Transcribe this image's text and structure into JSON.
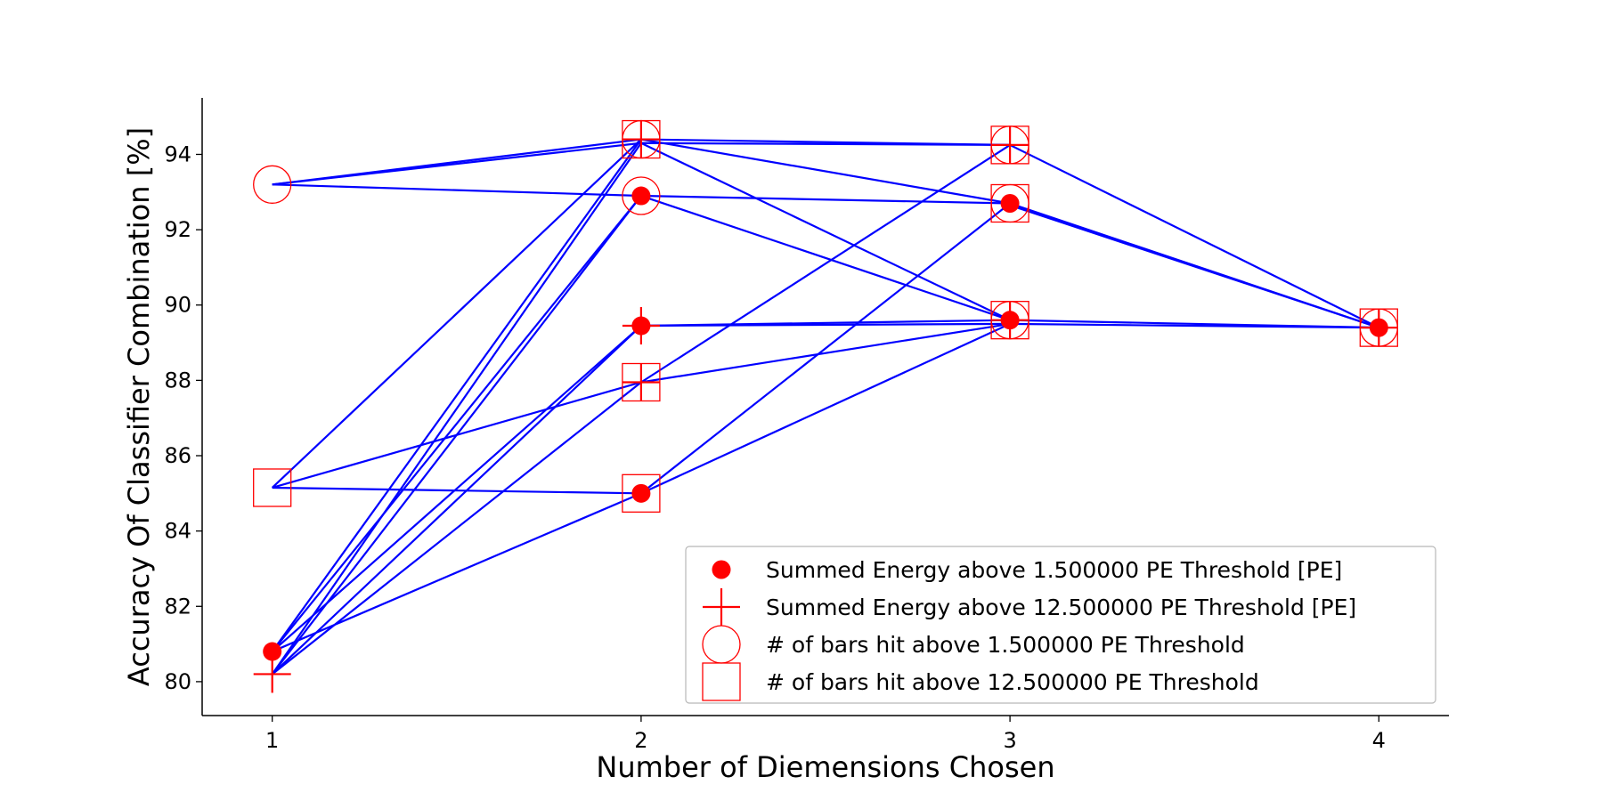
{
  "chart_data": {
    "type": "scatter",
    "xlabel": "Number of Diemensions Chosen",
    "ylabel": "Accuracy Of Classifier Combination [%]",
    "xlim": [
      0.81,
      4.19
    ],
    "ylim": [
      79.1,
      95.5
    ],
    "xticks": [
      1,
      2,
      3,
      4
    ],
    "yticks": [
      80,
      82,
      84,
      86,
      88,
      90,
      92,
      94
    ],
    "grid": false,
    "legend_position": "lower-right",
    "line_color": "#0000ff",
    "marker_color": "#ff0000",
    "legend": [
      {
        "marker": "dot",
        "label": "Summed Energy above 1.500000 PE Threshold [PE]"
      },
      {
        "marker": "plus",
        "label": "Summed Energy above 12.500000 PE Threshold [PE]"
      },
      {
        "marker": "circle",
        "label": "# of bars hit above 1.500000 PE Threshold"
      },
      {
        "marker": "square",
        "label": "# of bars hit above 12.500000 PE Threshold"
      }
    ],
    "points": [
      {
        "x": 1,
        "y": 80.8,
        "markers": [
          "dot"
        ]
      },
      {
        "x": 1,
        "y": 80.2,
        "markers": [
          "plus"
        ]
      },
      {
        "x": 1,
        "y": 93.2,
        "markers": [
          "circle"
        ]
      },
      {
        "x": 1,
        "y": 85.15,
        "markers": [
          "square"
        ]
      },
      {
        "x": 2,
        "y": 94.4,
        "markers": [
          "plus",
          "circle",
          "square"
        ]
      },
      {
        "x": 2,
        "y": 92.9,
        "markers": [
          "dot",
          "circle"
        ]
      },
      {
        "x": 2,
        "y": 89.45,
        "markers": [
          "dot",
          "plus"
        ]
      },
      {
        "x": 2,
        "y": 87.95,
        "markers": [
          "plus",
          "square"
        ]
      },
      {
        "x": 2,
        "y": 85.0,
        "markers": [
          "dot",
          "square"
        ]
      },
      {
        "x": 3,
        "y": 94.25,
        "markers": [
          "plus",
          "circle",
          "square"
        ]
      },
      {
        "x": 3,
        "y": 92.7,
        "markers": [
          "dot",
          "circle",
          "square"
        ]
      },
      {
        "x": 3,
        "y": 89.6,
        "markers": [
          "dot",
          "plus",
          "circle",
          "square"
        ]
      },
      {
        "x": 4,
        "y": 89.4,
        "markers": [
          "dot",
          "plus",
          "circle",
          "square"
        ]
      }
    ],
    "segments": [
      [
        [
          1,
          93.2
        ],
        [
          2,
          94.4
        ]
      ],
      [
        [
          1,
          93.2
        ],
        [
          2,
          94.3
        ]
      ],
      [
        [
          1,
          93.2
        ],
        [
          2,
          92.9
        ]
      ],
      [
        [
          1,
          85.15
        ],
        [
          2,
          94.4
        ]
      ],
      [
        [
          1,
          85.15
        ],
        [
          2,
          87.95
        ]
      ],
      [
        [
          1,
          85.15
        ],
        [
          2,
          85.0
        ]
      ],
      [
        [
          1,
          80.8
        ],
        [
          2,
          94.4
        ]
      ],
      [
        [
          1,
          80.8
        ],
        [
          2,
          92.9
        ]
      ],
      [
        [
          1,
          80.8
        ],
        [
          2,
          89.45
        ]
      ],
      [
        [
          1,
          80.8
        ],
        [
          2,
          85.0
        ]
      ],
      [
        [
          1,
          80.2
        ],
        [
          2,
          94.3
        ]
      ],
      [
        [
          1,
          80.2
        ],
        [
          2,
          92.9
        ]
      ],
      [
        [
          1,
          80.2
        ],
        [
          2,
          89.45
        ]
      ],
      [
        [
          1,
          80.2
        ],
        [
          2,
          87.95
        ]
      ],
      [
        [
          2,
          94.4
        ],
        [
          3,
          94.25
        ]
      ],
      [
        [
          2,
          94.3
        ],
        [
          3,
          94.25
        ]
      ],
      [
        [
          2,
          94.4
        ],
        [
          3,
          92.7
        ]
      ],
      [
        [
          2,
          94.3
        ],
        [
          3,
          89.6
        ]
      ],
      [
        [
          2,
          92.9
        ],
        [
          3,
          92.7
        ]
      ],
      [
        [
          2,
          92.9
        ],
        [
          3,
          89.6
        ]
      ],
      [
        [
          2,
          89.45
        ],
        [
          3,
          89.6
        ]
      ],
      [
        [
          2,
          89.45
        ],
        [
          3,
          89.5
        ]
      ],
      [
        [
          2,
          87.95
        ],
        [
          3,
          89.5
        ]
      ],
      [
        [
          2,
          87.95
        ],
        [
          3,
          94.25
        ]
      ],
      [
        [
          2,
          85.0
        ],
        [
          3,
          92.7
        ]
      ],
      [
        [
          2,
          85.0
        ],
        [
          3,
          89.5
        ]
      ],
      [
        [
          3,
          94.25
        ],
        [
          4,
          89.4
        ]
      ],
      [
        [
          3,
          92.7
        ],
        [
          4,
          89.4
        ]
      ],
      [
        [
          3,
          92.65
        ],
        [
          4,
          89.4
        ]
      ],
      [
        [
          3,
          89.6
        ],
        [
          4,
          89.4
        ]
      ],
      [
        [
          3,
          89.5
        ],
        [
          4,
          89.4
        ]
      ]
    ]
  }
}
